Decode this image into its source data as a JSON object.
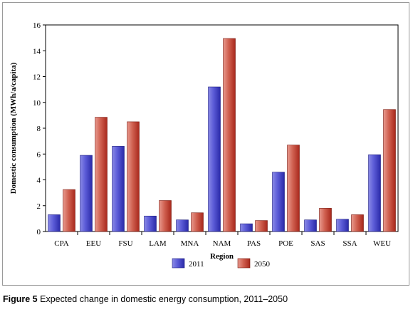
{
  "chart_data": {
    "type": "bar",
    "title": "",
    "xlabel": "Region",
    "ylabel": "Domestic consumption (MWh/a/capita)",
    "ylim": [
      0,
      16
    ],
    "yticks": [
      0,
      2,
      4,
      6,
      8,
      10,
      12,
      14,
      16
    ],
    "grid": false,
    "legend_position": "bottom-center",
    "categories": [
      "CPA",
      "EEU",
      "FSU",
      "LAM",
      "MNA",
      "NAM",
      "PAS",
      "POE",
      "SAS",
      "SSA",
      "WEU"
    ],
    "series": [
      {
        "name": "2011",
        "color": "#3a3ac4",
        "values": [
          1.3,
          5.9,
          6.6,
          1.2,
          0.9,
          11.2,
          0.6,
          4.6,
          0.9,
          0.95,
          5.95
        ]
      },
      {
        "name": "2050",
        "color": "#c0392b",
        "values": [
          3.25,
          8.85,
          8.5,
          2.4,
          1.45,
          14.95,
          0.85,
          6.7,
          1.8,
          1.3,
          9.45
        ]
      }
    ]
  },
  "caption": {
    "label": "Figure 5",
    "text": "Expected change in domestic energy consumption, 2011–2050"
  }
}
